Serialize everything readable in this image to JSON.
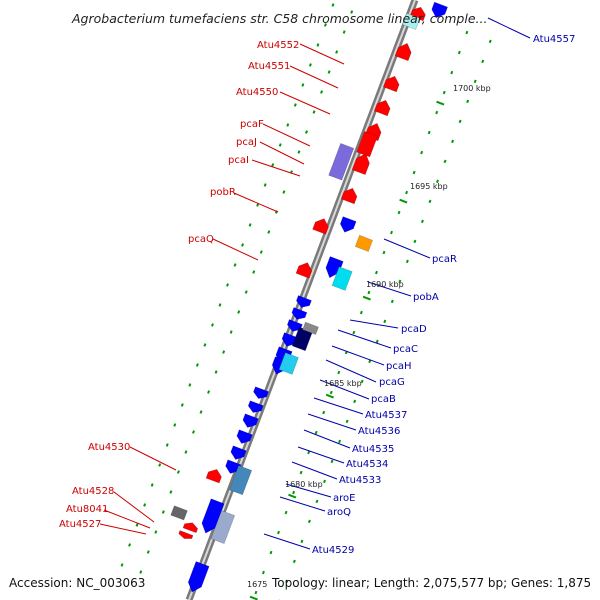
{
  "title": "Agrobacterium tumefaciens str. C58 chromosome linear, comple...",
  "footer": {
    "accession": "Accession: NC_003063",
    "summary": "Topology: linear; Length: 2,075,577 bp; Genes: 1,875"
  },
  "kbp_labels": [
    "1700 kbp",
    "1695 kbp",
    "1690 kbp",
    "1685 kbp",
    "1680 kbp",
    "1675"
  ],
  "left_labels": [
    "Atu4552",
    "Atu4551",
    "Atu4550",
    "pcaF",
    "pcaJ",
    "pcaI",
    "pobR",
    "pcaQ",
    "Atu4530",
    "Atu4528",
    "Atu8041",
    "Atu4527"
  ],
  "right_labels": [
    "Atu4557",
    "pcaR",
    "pobA",
    "pcaD",
    "pcaC",
    "pcaH",
    "pcaG",
    "pcaB",
    "Atu4537",
    "Atu4536",
    "Atu4535",
    "Atu4534",
    "Atu4533",
    "aroE",
    "aroQ",
    "Atu4529"
  ],
  "colors": {
    "forward_gene": "#ff0000",
    "reverse_gene": "#0000ff",
    "left_label": "#cc0000",
    "right_label": "#0000aa",
    "backbone": "#808080",
    "tick": "#009900"
  }
}
